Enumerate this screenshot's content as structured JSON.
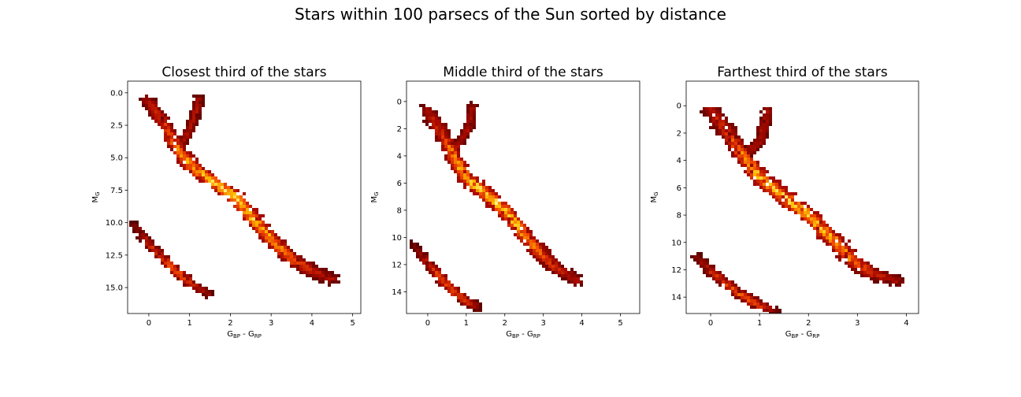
{
  "figure": {
    "suptitle": "Stars within 100 parsecs of the Sun sorted by distance"
  },
  "chart_data": [
    {
      "type": "heatmap",
      "title": "Closest third of the stars",
      "xlabel_main": "G",
      "xlabel_sub1": "BP",
      "xlabel_mid": " - G",
      "xlabel_sub2": "RP",
      "ylabel_main": "M",
      "ylabel_sub": "G",
      "xlim": [
        -0.52,
        5.2
      ],
      "ylim": [
        17.0,
        -0.9
      ],
      "y_inverted": true,
      "xticks": [
        0,
        1,
        2,
        3,
        4,
        5
      ],
      "xticklabels": [
        "0",
        "1",
        "2",
        "3",
        "4",
        "5"
      ],
      "yticks": [
        0.0,
        2.5,
        5.0,
        7.5,
        10.0,
        12.5,
        15.0
      ],
      "yticklabels": [
        "0.0",
        "2.5",
        "5.0",
        "7.5",
        "10.0",
        "12.5",
        "15.0"
      ],
      "colormap": "hot_r",
      "main_sequence": [
        [
          -0.02,
          0.6
        ],
        [
          0.3,
          2.0
        ],
        [
          0.7,
          4.3
        ],
        [
          1.1,
          5.8
        ],
        [
          1.6,
          6.9
        ],
        [
          2.1,
          8.0
        ],
        [
          2.6,
          9.8
        ],
        [
          3.0,
          11.3
        ],
        [
          3.5,
          12.8
        ],
        [
          4.0,
          13.7
        ],
        [
          4.5,
          14.4
        ]
      ],
      "giant_branch": [
        [
          0.8,
          4.0
        ],
        [
          1.0,
          2.8
        ],
        [
          1.15,
          1.6
        ],
        [
          1.25,
          0.4
        ]
      ],
      "white_dwarfs": [
        [
          -0.35,
          10.2
        ],
        [
          0.1,
          12.0
        ],
        [
          0.6,
          13.6
        ],
        [
          1.0,
          14.6
        ],
        [
          1.5,
          15.6
        ]
      ]
    },
    {
      "type": "heatmap",
      "title": "Middle third of the stars",
      "xlabel_main": "G",
      "xlabel_sub1": "BP",
      "xlabel_mid": " - G",
      "xlabel_sub2": "RP",
      "ylabel_main": "M",
      "ylabel_sub": "G",
      "xlim": [
        -0.55,
        5.5
      ],
      "ylim": [
        15.6,
        -1.5
      ],
      "y_inverted": true,
      "xticks": [
        0,
        1,
        2,
        3,
        4,
        5
      ],
      "xticklabels": [
        "0",
        "1",
        "2",
        "3",
        "4",
        "5"
      ],
      "yticks": [
        0,
        2,
        4,
        6,
        8,
        10,
        12,
        14
      ],
      "yticklabels": [
        "0",
        "2",
        "4",
        "6",
        "8",
        "10",
        "12",
        "14"
      ],
      "colormap": "hot_r",
      "main_sequence": [
        [
          0.0,
          0.7
        ],
        [
          0.3,
          2.0
        ],
        [
          0.65,
          3.9
        ],
        [
          1.0,
          5.6
        ],
        [
          1.5,
          6.8
        ],
        [
          2.0,
          8.0
        ],
        [
          2.5,
          9.8
        ],
        [
          2.9,
          11.1
        ],
        [
          3.3,
          12.2
        ],
        [
          3.9,
          13.2
        ]
      ],
      "giant_branch": [
        [
          0.7,
          3.6
        ],
        [
          0.95,
          2.5
        ],
        [
          1.1,
          1.6
        ],
        [
          1.15,
          0.4
        ]
      ],
      "white_dwarfs": [
        [
          -0.35,
          10.6
        ],
        [
          0.1,
          12.2
        ],
        [
          0.6,
          13.8
        ],
        [
          1.0,
          14.7
        ],
        [
          1.3,
          15.2
        ]
      ]
    },
    {
      "type": "heatmap",
      "title": "Farthest third of the stars",
      "xlabel_main": "G",
      "xlabel_sub1": "BP",
      "xlabel_mid": " - G",
      "xlabel_sub2": "RP",
      "ylabel_main": "M",
      "ylabel_sub": "G",
      "xlim": [
        -0.5,
        4.25
      ],
      "ylim": [
        15.2,
        -1.8
      ],
      "y_inverted": true,
      "xticks": [
        0,
        1,
        2,
        3,
        4
      ],
      "xticklabels": [
        "0",
        "1",
        "2",
        "3",
        "4"
      ],
      "yticks": [
        0,
        2,
        4,
        6,
        8,
        10,
        12,
        14
      ],
      "yticklabels": [
        "0",
        "2",
        "4",
        "6",
        "8",
        "10",
        "12",
        "14"
      ],
      "colormap": "hot_r",
      "main_sequence": [
        [
          0.0,
          0.2
        ],
        [
          0.3,
          1.8
        ],
        [
          0.65,
          3.6
        ],
        [
          1.0,
          5.2
        ],
        [
          1.5,
          6.7
        ],
        [
          2.0,
          8.0
        ],
        [
          2.5,
          9.8
        ],
        [
          2.9,
          11.3
        ],
        [
          3.3,
          12.3
        ],
        [
          3.8,
          12.8
        ]
      ],
      "giant_branch": [
        [
          0.8,
          3.4
        ],
        [
          1.0,
          2.6
        ],
        [
          1.1,
          1.5
        ],
        [
          1.15,
          0.4
        ]
      ],
      "white_dwarfs": [
        [
          -0.3,
          11.0
        ],
        [
          0.1,
          12.4
        ],
        [
          0.6,
          13.8
        ],
        [
          1.0,
          14.6
        ],
        [
          1.3,
          15.0
        ]
      ]
    }
  ]
}
